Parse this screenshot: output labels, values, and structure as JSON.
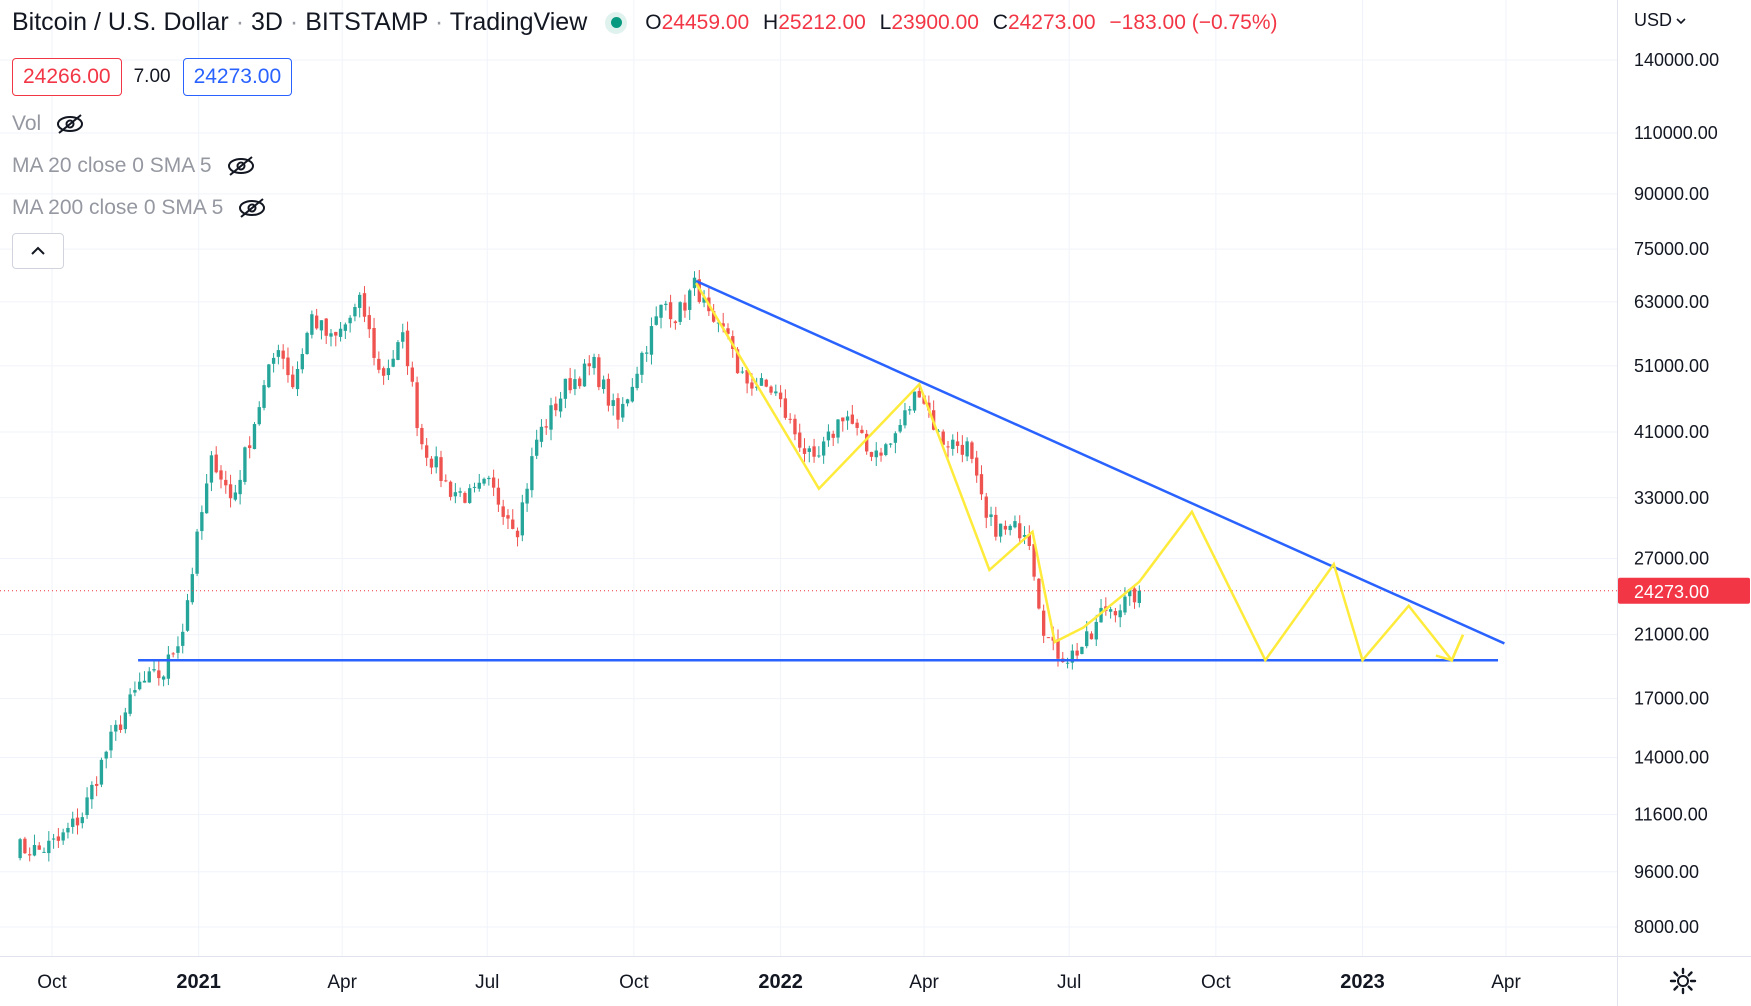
{
  "header": {
    "symbol": "Bitcoin / U.S. Dollar",
    "interval": "3D",
    "exchange": "BITSTAMP",
    "source": "TradingView",
    "separator": "·",
    "ohlc": {
      "o_label": "O",
      "o_value": "24459.00",
      "h_label": "H",
      "h_value": "25212.00",
      "l_label": "L",
      "l_value": "23900.00",
      "c_label": "C",
      "c_value": "24273.00",
      "change": "−183.00 (−0.75%)"
    }
  },
  "prices": {
    "bid": "24266.00",
    "spread": "7.00",
    "ask": "24273.00"
  },
  "indicators": [
    {
      "label": "Vol",
      "icon": "eye-off-icon"
    },
    {
      "label": "MA 20 close 0 SMA 5",
      "icon": "eye-off-icon"
    },
    {
      "label": "MA 200 close 0 SMA 5",
      "icon": "eye-off-icon"
    }
  ],
  "currency": "USD",
  "colors": {
    "up": "#26a69a",
    "down": "#ef5350",
    "trendline": "#2962ff",
    "projection": "#ffeb3b",
    "last_price": "#f23645",
    "grid": "#f0f3fa"
  },
  "chart_data": {
    "type": "candlestick",
    "scale": "log",
    "x_axis": {
      "ticks": [
        "Oct",
        "2021",
        "Apr",
        "Jul",
        "Oct",
        "2022",
        "Apr",
        "Jul",
        "Oct",
        "2023",
        "Apr"
      ],
      "tick_dates": [
        "2020-10-01",
        "2021-01-01",
        "2021-04-01",
        "2021-07-01",
        "2021-10-01",
        "2022-01-01",
        "2022-04-01",
        "2022-07-01",
        "2022-10-01",
        "2023-01-01",
        "2023-04-01"
      ],
      "bold": [
        "2021",
        "2022",
        "2023"
      ]
    },
    "y_axis": {
      "ticks": [
        140000,
        110000,
        90000,
        75000,
        63000,
        51000,
        41000,
        33000,
        27000,
        21000,
        17000,
        14000,
        11600,
        9600,
        8000
      ],
      "tick_labels": [
        "140000.00",
        "110000.00",
        "90000.00",
        "75000.00",
        "63000.00",
        "51000.00",
        "41000.00",
        "33000.00",
        "27000.00",
        "21000.00",
        "17000.00",
        "14000.00",
        "11600.00",
        "9600.00",
        "8000.00"
      ]
    },
    "last_price": 24273,
    "last_price_label": "24273.00",
    "anchors": [
      [
        "2020-09-08",
        10400
      ],
      [
        "2020-09-23",
        10300
      ],
      [
        "2020-10-05",
        10600
      ],
      [
        "2020-10-20",
        11600
      ],
      [
        "2020-11-05",
        14500
      ],
      [
        "2020-11-25",
        17800
      ],
      [
        "2020-12-10",
        18500
      ],
      [
        "2020-12-22",
        21500
      ],
      [
        "2021-01-02",
        30500
      ],
      [
        "2021-01-10",
        38000
      ],
      [
        "2021-01-22",
        32500
      ],
      [
        "2021-02-08",
        45000
      ],
      [
        "2021-02-20",
        55000
      ],
      [
        "2021-03-01",
        48000
      ],
      [
        "2021-03-13",
        60000
      ],
      [
        "2021-03-26",
        55000
      ],
      [
        "2021-04-13",
        63000
      ],
      [
        "2021-04-25",
        49000
      ],
      [
        "2021-05-10",
        56000
      ],
      [
        "2021-05-20",
        40000
      ],
      [
        "2021-06-07",
        34000
      ],
      [
        "2021-06-21",
        33000
      ],
      [
        "2021-07-01",
        34500
      ],
      [
        "2021-07-20",
        30000
      ],
      [
        "2021-08-01",
        40000
      ],
      [
        "2021-08-20",
        48000
      ],
      [
        "2021-09-06",
        51000
      ],
      [
        "2021-09-21",
        42500
      ],
      [
        "2021-10-06",
        53000
      ],
      [
        "2021-10-20",
        63000
      ],
      [
        "2021-10-28",
        60000
      ],
      [
        "2021-11-09",
        67000
      ],
      [
        "2021-11-20",
        57000
      ],
      [
        "2021-12-01",
        57000
      ],
      [
        "2021-12-05",
        49000
      ],
      [
        "2021-12-28",
        47000
      ],
      [
        "2022-01-06",
        42500
      ],
      [
        "2022-01-22",
        36500
      ],
      [
        "2022-02-10",
        44000
      ],
      [
        "2022-02-24",
        38500
      ],
      [
        "2022-03-10",
        39000
      ],
      [
        "2022-03-29",
        47500
      ],
      [
        "2022-04-11",
        40000
      ],
      [
        "2022-04-28",
        39000
      ],
      [
        "2022-05-10",
        30500
      ],
      [
        "2022-05-22",
        29500
      ],
      [
        "2022-06-05",
        30000
      ],
      [
        "2022-06-14",
        22000
      ],
      [
        "2022-06-20",
        20000
      ],
      [
        "2022-07-01",
        19500
      ],
      [
        "2022-07-15",
        20800
      ],
      [
        "2022-07-22",
        22800
      ],
      [
        "2022-08-05",
        23300
      ],
      [
        "2022-08-14",
        24273
      ]
    ],
    "trendlines": [
      {
        "name": "descending-resistance",
        "points": [
          [
            "2021-11-09",
            67500
          ],
          [
            "2023-03-31",
            20400
          ]
        ]
      },
      {
        "name": "horizontal-support",
        "points": [
          [
            "2020-11-24",
            19300
          ],
          [
            "2023-03-27",
            19300
          ]
        ]
      }
    ],
    "projection_path": [
      [
        "2021-11-09",
        67000
      ],
      [
        "2022-01-25",
        34000
      ],
      [
        "2022-03-29",
        48000
      ],
      [
        "2022-05-12",
        26000
      ],
      [
        "2022-06-08",
        29500
      ],
      [
        "2022-06-22",
        20500
      ],
      [
        "2022-07-10",
        21500
      ],
      [
        "2022-08-14",
        25000
      ],
      [
        "2022-09-16",
        31500
      ],
      [
        "2022-11-01",
        19300
      ],
      [
        "2022-12-14",
        26500
      ],
      [
        "2023-01-01",
        19300
      ],
      [
        "2023-01-30",
        23100
      ],
      [
        "2023-02-26",
        19300
      ],
      [
        "2023-03-05",
        21000
      ]
    ],
    "projection_arrow": [
      [
        "2023-02-16",
        19600
      ],
      [
        "2023-02-26",
        19300
      ],
      [
        "2023-03-05",
        21000
      ]
    ]
  }
}
